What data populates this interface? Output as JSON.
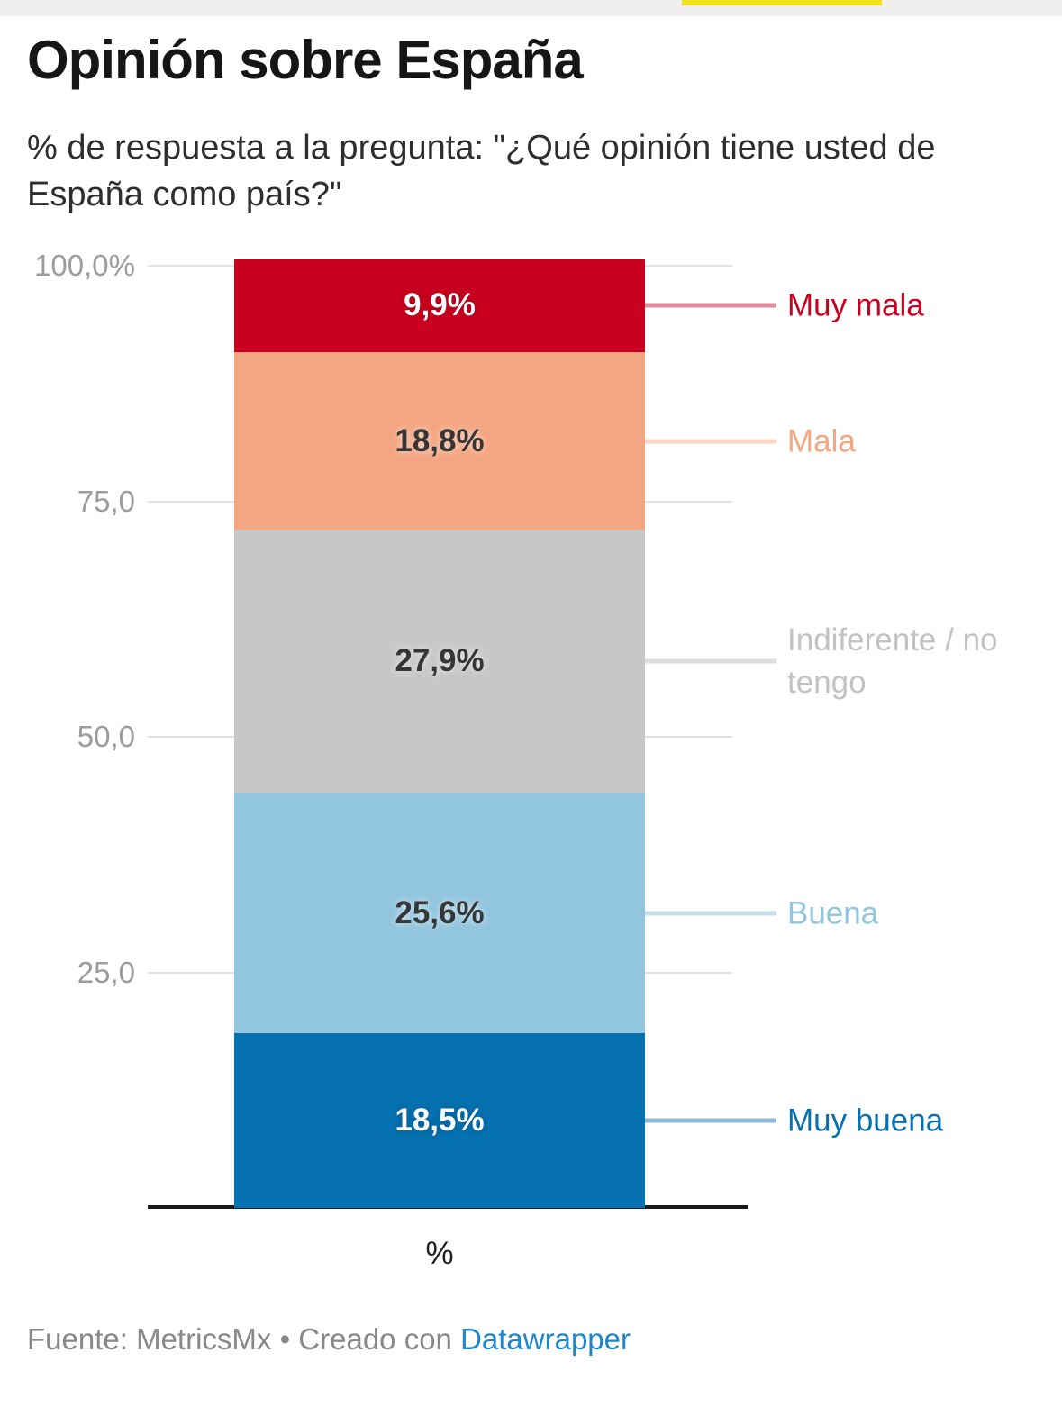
{
  "page": {
    "top_strip_color": "#f0efed",
    "progress_bar_color": "#f2e11e"
  },
  "header": {
    "title": "Opinión sobre España",
    "subtitle": "% de respuesta a la pregunta: \"¿Qué opinión tiene usted de España como país?\""
  },
  "chart_data": {
    "type": "bar",
    "variant": "single-column-stacked",
    "title": "Opinión sobre España",
    "subtitle": "% de respuesta a la pregunta: \"¿Qué opinión tiene usted de España como país?\"",
    "xlabel": "%",
    "ylabel": "",
    "ylim": [
      0,
      100
    ],
    "grid": true,
    "legend_position": "right",
    "y_ticks": [
      {
        "value": 100,
        "label": "100,0%"
      },
      {
        "value": 75,
        "label": "75,0"
      },
      {
        "value": 50,
        "label": "50,0"
      },
      {
        "value": 25,
        "label": "25,0"
      }
    ],
    "segments": [
      {
        "name": "Muy mala",
        "value": 9.9,
        "value_label": "9,9%",
        "color": "#ca0020",
        "text_style": "light",
        "leader_color": "#df8e9b",
        "label_color": "#ca0020"
      },
      {
        "name": "Mala",
        "value": 18.8,
        "value_label": "18,8%",
        "color": "#f4a582",
        "text_style": "dark",
        "leader_color": "#f9d6c5",
        "label_color": "#f4a582"
      },
      {
        "name": "Indiferente / no tengo",
        "value": 27.9,
        "value_label": "27,9%",
        "color": "#c7c7c7",
        "text_style": "dark",
        "leader_color": "#dedede",
        "label_color": "#c2c2c2"
      },
      {
        "name": "Buena",
        "value": 25.6,
        "value_label": "25,6%",
        "color": "#92c5de",
        "text_style": "dark",
        "leader_color": "#c4dfee",
        "label_color": "#92c5de"
      },
      {
        "name": "Muy buena",
        "value": 18.5,
        "value_label": "18,5%",
        "color": "#0571b0",
        "text_style": "light",
        "leader_color": "#8cb9d9",
        "label_color": "#0571b0"
      }
    ]
  },
  "footer": {
    "source_prefix": "Fuente: ",
    "source": "MetricsMx",
    "separator": " • ",
    "credit_text": "Creado con ",
    "credit_link": "Datawrapper",
    "link_color": "#1e87c9"
  }
}
